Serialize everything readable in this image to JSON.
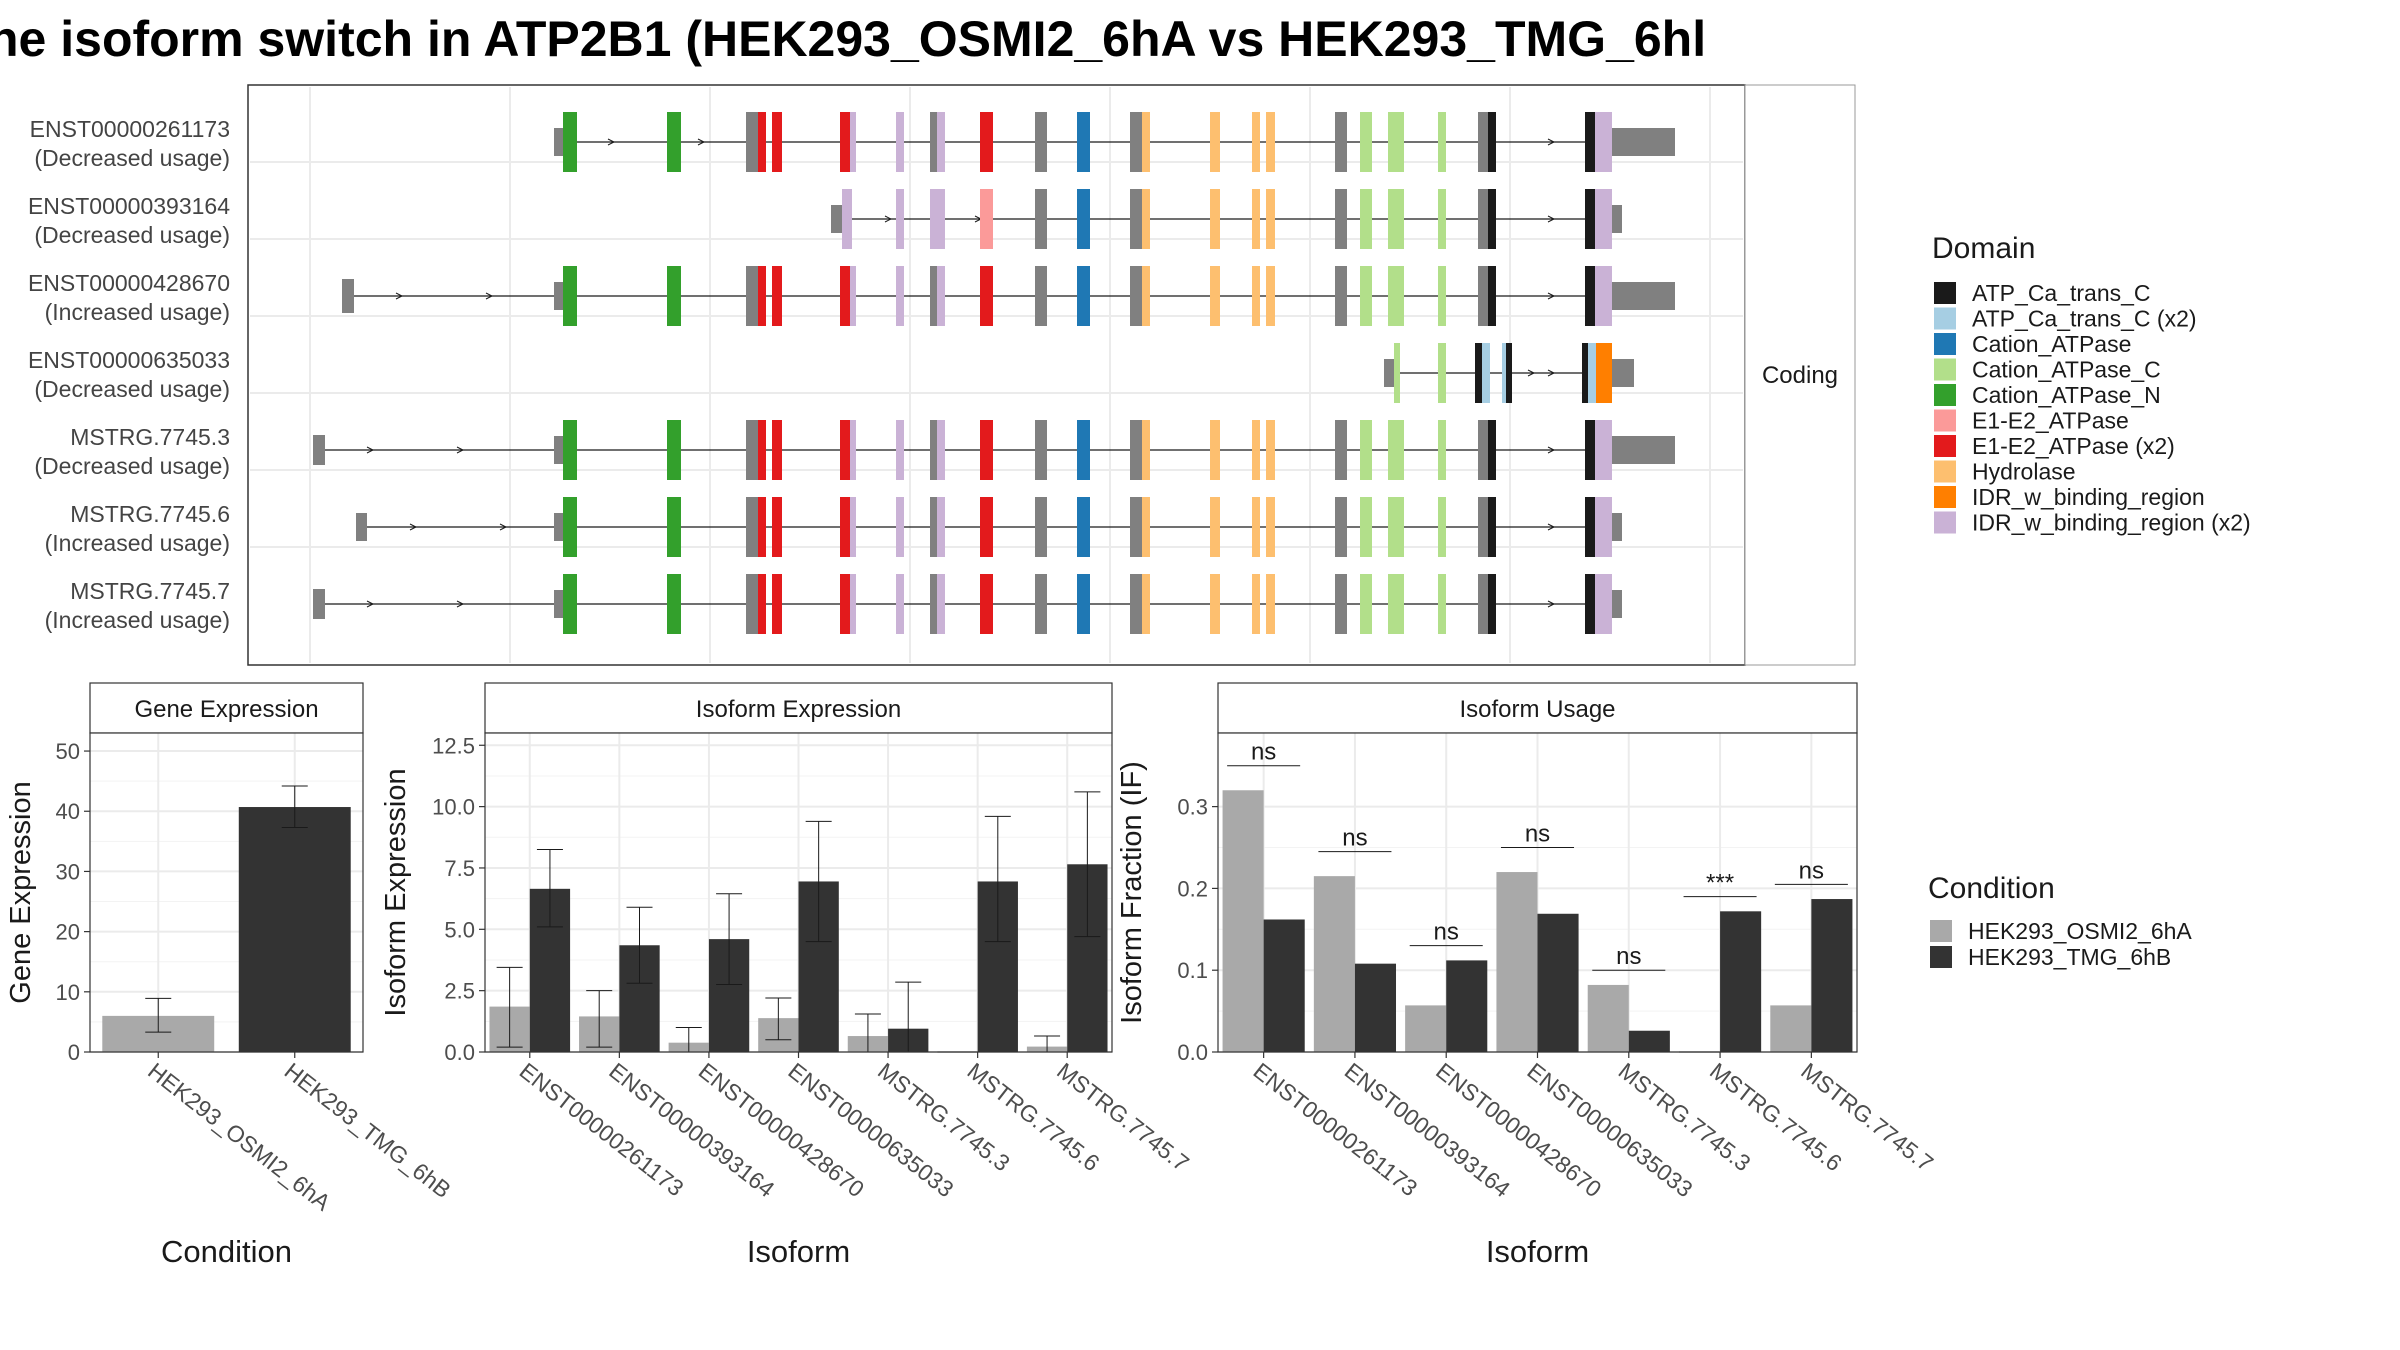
{
  "title": "he isoform switch in ATP2B1 (HEK293_OSMI2_6hA vs HEK293_TMG_6hl",
  "colors": {
    "ATP_Ca_trans_C": "#1a1a1a",
    "ATP_Ca_trans_C (x2)": "#a6cee3",
    "Cation_ATPase": "#1f78b4",
    "Cation_ATPase_C": "#b2df8a",
    "Cation_ATPase_N": "#33a02c",
    "E1-E2_ATPase": "#fb9a99",
    "E1-E2_ATPase (x2)": "#e31a1c",
    "Hydrolase": "#fdbf6f",
    "IDR_w_binding_region": "#ff7f00",
    "IDR_w_binding_region (x2)": "#cab2d6",
    "utr": "#808080",
    "cond_a": "#a9a9a9",
    "cond_b": "#333333"
  },
  "structure": {
    "isoforms": [
      {
        "id": "ENST00000261173",
        "status": "(Decreased usage)"
      },
      {
        "id": "ENST00000393164",
        "status": "(Decreased usage)"
      },
      {
        "id": "ENST00000428670",
        "status": "(Increased usage)"
      },
      {
        "id": "ENST00000635033",
        "status": "(Decreased usage)"
      },
      {
        "id": "MSTRG.7745.3",
        "status": "(Decreased usage)"
      },
      {
        "id": "MSTRG.7745.6",
        "status": "(Increased usage)"
      },
      {
        "id": "MSTRG.7745.7",
        "status": "(Increased usage)"
      }
    ],
    "strip_label": "Coding"
  },
  "domain_legend": {
    "title": "Domain",
    "items": [
      "ATP_Ca_trans_C",
      "ATP_Ca_trans_C (x2)",
      "Cation_ATPase",
      "Cation_ATPase_C",
      "Cation_ATPase_N",
      "E1-E2_ATPase",
      "E1-E2_ATPase (x2)",
      "Hydrolase",
      "IDR_w_binding_region",
      "IDR_w_binding_region (x2)"
    ]
  },
  "condition_legend": {
    "title": "Condition",
    "items": [
      "HEK293_OSMI2_6hA",
      "HEK293_TMG_6hB"
    ]
  },
  "chart_data": [
    {
      "type": "bar",
      "title": "Gene Expression",
      "xlabel": "Condition",
      "ylabel": "Gene Expression",
      "ylim": [
        0,
        53
      ],
      "yticks": [
        "0",
        "10",
        "20",
        "30",
        "40",
        "50"
      ],
      "categories": [
        "HEK293_OSMI2_6hA",
        "HEK293_TMG_6hB"
      ],
      "values": [
        6,
        40.7
      ],
      "errors": [
        [
          3.3,
          8.9
        ],
        [
          37.3,
          44.2
        ]
      ]
    },
    {
      "type": "bar",
      "title": "Isoform Expression",
      "xlabel": "Isoform",
      "ylabel": "Isoform Expression",
      "ylim": [
        0,
        13
      ],
      "yticks": [
        "0.0",
        "2.5",
        "5.0",
        "7.5",
        "10.0",
        "12.5"
      ],
      "categories": [
        "ENST00000261173",
        "ENST00000393164",
        "ENST00000428670",
        "ENST00000635033",
        "MSTRG.7745.3",
        "MSTRG.7745.6",
        "MSTRG.7745.7"
      ],
      "series": [
        {
          "name": "HEK293_OSMI2_6hA",
          "values": [
            1.85,
            1.45,
            0.38,
            1.38,
            0.65,
            0,
            0.22
          ],
          "errors": [
            [
              0.2,
              3.45
            ],
            [
              0.2,
              2.5
            ],
            [
              0,
              1.0
            ],
            [
              0.5,
              2.2
            ],
            [
              0,
              1.55
            ],
            [
              0,
              0
            ],
            [
              0,
              0.65
            ]
          ]
        },
        {
          "name": "HEK293_TMG_6hB",
          "values": [
            6.65,
            4.35,
            4.6,
            6.95,
            0.95,
            6.95,
            7.65
          ],
          "errors": [
            [
              5.1,
              8.25
            ],
            [
              2.8,
              5.9
            ],
            [
              2.75,
              6.45
            ],
            [
              4.5,
              9.4
            ],
            [
              0,
              2.85
            ],
            [
              4.5,
              9.6
            ],
            [
              4.7,
              10.6
            ]
          ]
        }
      ]
    },
    {
      "type": "bar",
      "title": "Isoform Usage",
      "xlabel": "Isoform",
      "ylabel": "Isoform Fraction (IF)",
      "ylim": [
        0,
        0.39
      ],
      "yticks": [
        "0.0",
        "0.1",
        "0.2",
        "0.3"
      ],
      "categories": [
        "ENST00000261173",
        "ENST00000393164",
        "ENST00000428670",
        "ENST00000635033",
        "MSTRG.7745.3",
        "MSTRG.7745.6",
        "MSTRG.7745.7"
      ],
      "series": [
        {
          "name": "HEK293_OSMI2_6hA",
          "values": [
            0.32,
            0.215,
            0.057,
            0.22,
            0.082,
            0,
            0.057
          ]
        },
        {
          "name": "HEK293_TMG_6hB",
          "values": [
            0.162,
            0.108,
            0.112,
            0.169,
            0.026,
            0.172,
            0.187
          ]
        }
      ],
      "significance": [
        "ns",
        "ns",
        "ns",
        "ns",
        "ns",
        "***",
        "ns"
      ],
      "significance_y": [
        0.35,
        0.245,
        0.13,
        0.25,
        0.1,
        0.19,
        0.205
      ]
    }
  ]
}
